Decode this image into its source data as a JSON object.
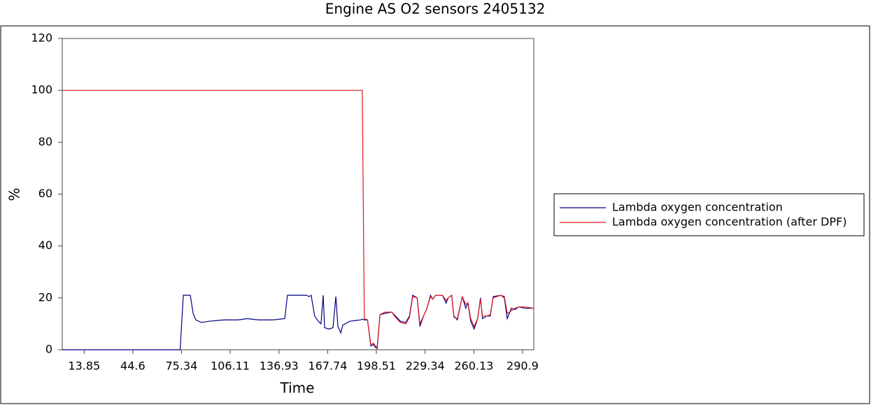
{
  "chart_data": {
    "type": "line",
    "title": "Engine AS   O2 sensors 2405132",
    "xlabel": "Time",
    "ylabel": "%",
    "x": [
      0,
      74.5,
      76.5,
      80.9,
      82.7,
      84.4,
      88,
      93,
      102,
      111,
      117,
      124,
      133,
      140.6,
      142.3,
      154.3,
      156,
      157.3,
      159.5,
      161.8,
      163.5,
      164.9,
      165.8,
      168.5,
      171.1,
      172.9,
      174.2,
      176,
      177.3,
      181.8,
      188.5,
      189.6,
      190.9,
      192.9,
      195,
      196.8,
      197.7,
      199,
      200.8,
      203.9,
      208.3,
      210.6,
      213.7,
      217.1,
      219.4,
      221.5,
      224.3,
      226,
      228.3,
      230.5,
      232.7,
      234.1,
      235.9,
      240.3,
      242.6,
      243.9,
      246.1,
      247.5,
      249.7,
      252.8,
      255,
      256.4,
      258.1,
      260.3,
      262.5,
      264.3,
      265.6,
      268.3,
      270.5,
      272.3,
      277.2,
      279.4,
      281.2,
      283.8,
      286.1,
      288.3,
      292.7,
      298
    ],
    "series": [
      {
        "name": "Lambda oxygen concentration",
        "color": "#000080",
        "values": [
          0,
          0,
          21,
          21,
          14,
          11.5,
          10.5,
          11,
          11.5,
          11.5,
          12,
          11.5,
          11.5,
          12,
          21,
          21,
          20.5,
          21,
          13,
          11,
          10,
          21,
          8.5,
          8,
          8.5,
          20.5,
          9,
          6.5,
          9.5,
          11,
          11.5,
          11.8,
          11.5,
          11.5,
          1.5,
          2,
          1,
          0.5,
          13.5,
          14,
          14.5,
          13,
          11,
          10.5,
          13,
          21,
          20,
          9,
          13,
          16,
          21,
          19.5,
          21,
          21,
          18,
          20,
          21,
          13,
          11.5,
          20.5,
          16,
          18,
          11,
          8,
          12,
          20,
          12,
          13,
          13,
          20.5,
          21,
          20,
          12,
          16,
          15.5,
          16.5,
          16,
          16
        ]
      },
      {
        "name": "Lambda oxygen concentration (after DPF)",
        "color": "#e0161b",
        "values": [
          100,
          100,
          100,
          100,
          100,
          100,
          100,
          100,
          100,
          100,
          100,
          100,
          100,
          100,
          100,
          100,
          100,
          100,
          100,
          100,
          100,
          100,
          100,
          100,
          100,
          100,
          100,
          100,
          100,
          100,
          100,
          100,
          12,
          11.5,
          2,
          2.5,
          1.5,
          1,
          13.5,
          14.5,
          14.5,
          12.5,
          10.5,
          10,
          12.5,
          20.5,
          20,
          10,
          13,
          16,
          20.5,
          19.5,
          21,
          21,
          19,
          20,
          21,
          12.5,
          12,
          20.5,
          17.5,
          18,
          12,
          9,
          12,
          19.5,
          13,
          13,
          13.5,
          20,
          21,
          20.5,
          14,
          15,
          16,
          16.5,
          16.5,
          16
        ]
      }
    ],
    "xlim": [
      0,
      298
    ],
    "xticks": [
      13.85,
      44.6,
      75.34,
      106.11,
      136.93,
      167.74,
      198.51,
      229.34,
      260.13,
      290.9
    ],
    "ylim": [
      0,
      120
    ],
    "yticks": [
      0,
      20,
      40,
      60,
      80,
      100,
      120
    ],
    "grid": false,
    "legend": "right"
  }
}
